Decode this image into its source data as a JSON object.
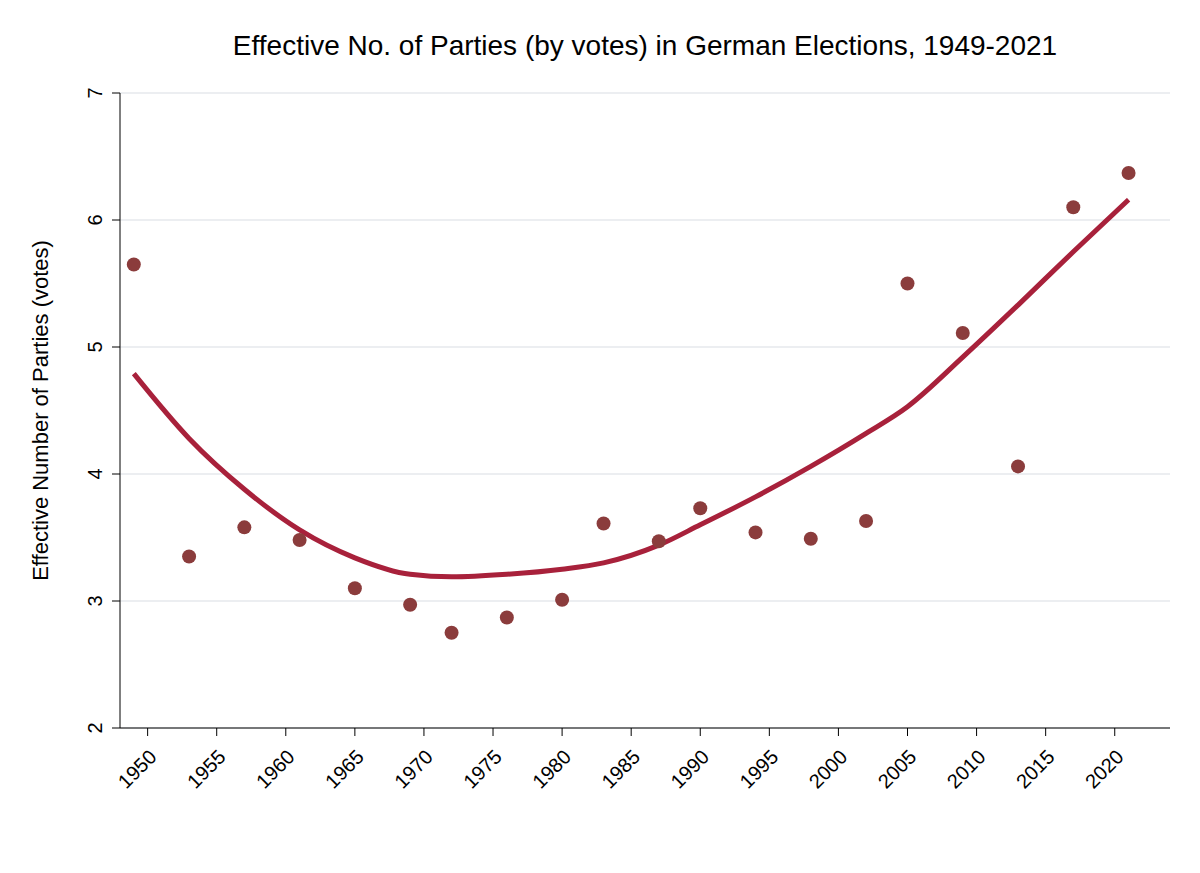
{
  "chart_data": {
    "type": "scatter",
    "title": "Effective No. of Parties (by votes) in German Elections, 1949-2021",
    "y_label": "Effective Number of Parties (votes)",
    "x": [
      1949,
      1953,
      1957,
      1961,
      1965,
      1969,
      1972,
      1976,
      1980,
      1983,
      1987,
      1990,
      1994,
      1998,
      2002,
      2005,
      2009,
      2013,
      2017,
      2021
    ],
    "series": [
      {
        "type": "scatter",
        "color": "#8b3c3c",
        "marker": "circle",
        "values": [
          5.65,
          3.35,
          3.58,
          3.48,
          3.1,
          2.97,
          2.75,
          2.87,
          3.01,
          3.61,
          3.47,
          3.73,
          3.54,
          3.49,
          3.63,
          5.5,
          5.11,
          4.06,
          6.1,
          6.37
        ]
      },
      {
        "type": "line",
        "color": "#a8213b",
        "line_style": "solid",
        "values": [
          4.79,
          4.28,
          3.88,
          3.56,
          3.34,
          3.21,
          3.19,
          3.21,
          3.25,
          3.3,
          3.44,
          3.6,
          3.82,
          4.06,
          4.32,
          4.53,
          4.92,
          5.33,
          5.75,
          6.16
        ]
      }
    ],
    "xlim": [
      1948,
      2024
    ],
    "xticks": [
      1950,
      1955,
      1960,
      1965,
      1970,
      1975,
      1980,
      1985,
      1990,
      1995,
      2000,
      2005,
      2010,
      2015,
      2020
    ],
    "ylim": [
      2,
      7
    ],
    "yticks": [
      2,
      3,
      4,
      5,
      6,
      7
    ],
    "grid": true
  }
}
